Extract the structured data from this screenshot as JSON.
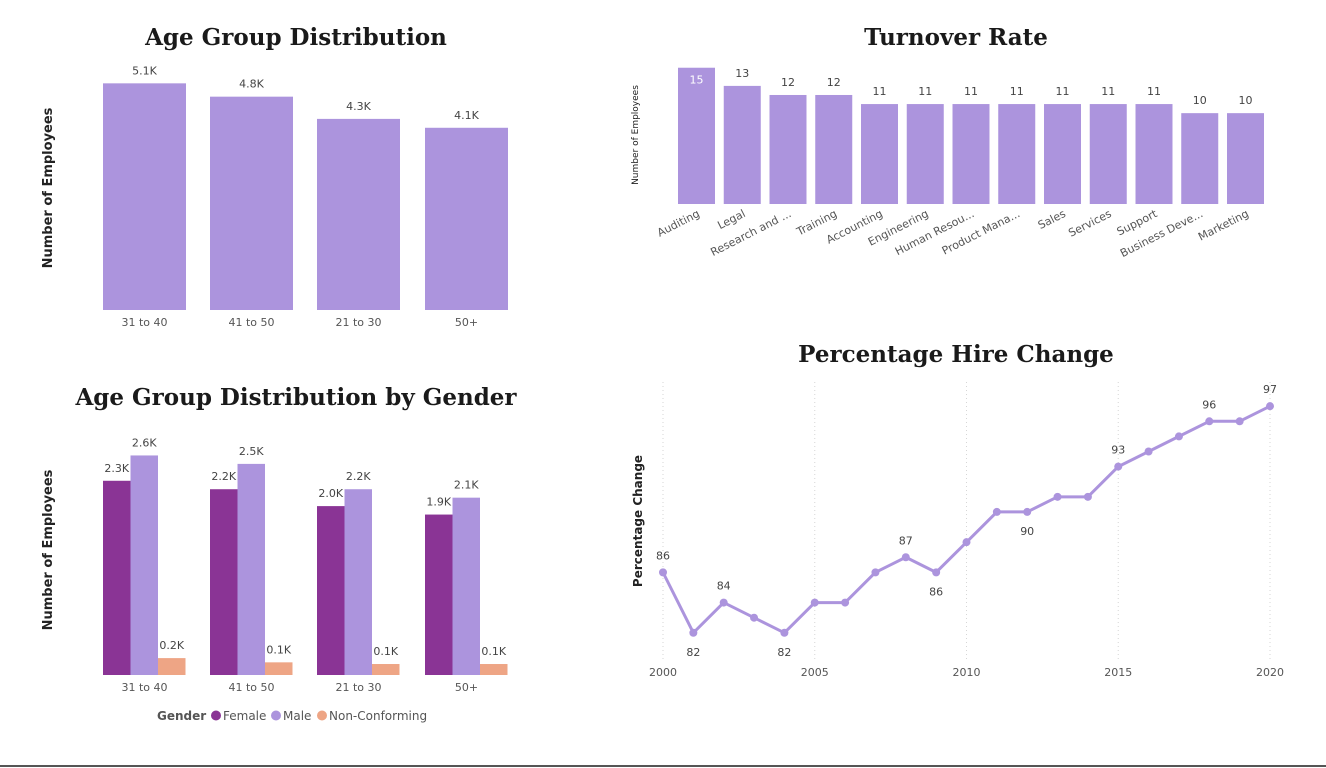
{
  "colors": {
    "purple_light": "#AC94DD",
    "purple_dark": "#8A3495",
    "salmon": "#EEA585",
    "axis_text": "#555555",
    "label_text": "#444444",
    "grid": "#D6D6D6"
  },
  "chart_data": [
    {
      "id": "age-group",
      "type": "bar",
      "title": "Age Group Distribution",
      "ylabel": "Number of Employees",
      "xlabel": "",
      "categories": [
        "31 to 40",
        "41 to 50",
        "21 to 30",
        "50+"
      ],
      "values": [
        5100,
        4800,
        4300,
        4100
      ],
      "data_labels": [
        "5.1K",
        "4.8K",
        "4.3K",
        "4.1K"
      ],
      "ylim": [
        0,
        5400
      ]
    },
    {
      "id": "turnover",
      "type": "bar",
      "title": "Turnover Rate",
      "ylabel": "Number of Employees",
      "xlabel": "",
      "categories": [
        "Auditing",
        "Legal",
        "Research and ...",
        "Training",
        "Accounting",
        "Engineering",
        "Human Resou...",
        "Product Mana...",
        "Sales",
        "Services",
        "Support",
        "Business Deve...",
        "Marketing"
      ],
      "values": [
        15,
        13,
        12,
        12,
        11,
        11,
        11,
        11,
        11,
        11,
        11,
        10,
        10
      ],
      "ylim": [
        0,
        15.3
      ]
    },
    {
      "id": "age-gender",
      "type": "bar",
      "title": "Age Group Distribution by Gender",
      "ylabel": "Number of Employees",
      "xlabel": "",
      "categories": [
        "31 to 40",
        "41 to 50",
        "21 to 30",
        "50+"
      ],
      "legend_title": "Gender",
      "legend_position": "bottom",
      "series": [
        {
          "name": "Female",
          "values": [
            2300,
            2200,
            2000,
            1900
          ],
          "labels": [
            "2.3K",
            "2.2K",
            "2.0K",
            "1.9K"
          ]
        },
        {
          "name": "Male",
          "values": [
            2600,
            2500,
            2200,
            2100
          ],
          "labels": [
            "2.6K",
            "2.5K",
            "2.2K",
            "2.1K"
          ]
        },
        {
          "name": "Non-Conforming",
          "values": [
            200,
            150,
            130,
            130
          ],
          "labels": [
            "0.2K",
            "0.1K",
            "0.1K",
            "0.1K"
          ]
        }
      ],
      "ylim": [
        0,
        2700
      ]
    },
    {
      "id": "hire-change",
      "type": "line",
      "title": "Percentage Hire Change",
      "ylabel": "Percentage Change",
      "xlabel": "",
      "x": [
        2000,
        2001,
        2002,
        2003,
        2004,
        2005,
        2006,
        2007,
        2008,
        2009,
        2010,
        2011,
        2012,
        2013,
        2014,
        2015,
        2016,
        2017,
        2018,
        2019,
        2020
      ],
      "values": [
        86,
        82,
        84,
        83,
        82,
        84,
        84,
        86,
        87,
        86,
        88,
        90,
        90,
        91,
        91,
        93,
        94,
        95,
        96,
        96,
        97
      ],
      "point_labels": {
        "2000": "86",
        "2001": "82",
        "2002": "84",
        "2004": "82",
        "2008": "87",
        "2009": "86",
        "2012": "90",
        "2015": "93",
        "2018": "96",
        "2020": "97"
      },
      "x_ticks": [
        2000,
        2005,
        2010,
        2015,
        2020
      ],
      "ylim": [
        80.2,
        98.6
      ],
      "grid": "vertical-dotted"
    }
  ]
}
